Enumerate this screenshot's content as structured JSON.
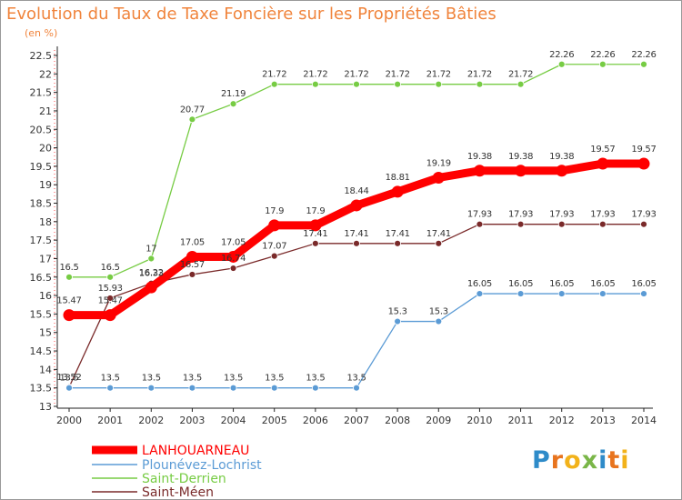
{
  "chart_data": {
    "type": "line",
    "title": "Evolution du Taux de Taxe Foncière sur les Propriétés Bâties",
    "ylabel": "(en %)",
    "xlabel": "",
    "x": [
      "2000",
      "2001",
      "2002",
      "2003",
      "2004",
      "2005",
      "2006",
      "2007",
      "2008",
      "2009",
      "2010",
      "2011",
      "2012",
      "2013",
      "2014"
    ],
    "yticks": [
      "13",
      "13.5",
      "14",
      "14.5",
      "15",
      "15.5",
      "16",
      "16.5",
      "17",
      "17.5",
      "18",
      "18.5",
      "19",
      "19.5",
      "20",
      "20.5",
      "21",
      "21.5",
      "22",
      "22.5"
    ],
    "ylim": [
      13,
      22.5
    ],
    "grid": false,
    "series": [
      {
        "name": "LANHOUARNEAU",
        "color": "#ff0000",
        "values": [
          15.47,
          15.47,
          16.22,
          17.05,
          17.05,
          17.9,
          17.9,
          18.44,
          18.81,
          19.19,
          19.38,
          19.38,
          19.38,
          19.57,
          19.57
        ],
        "labels": [
          "15.47",
          "15.47",
          "16.22",
          "17.05",
          "17.05",
          "17.9",
          "17.9",
          "18.44",
          "18.81",
          "19.19",
          "19.38",
          "19.38",
          "19.38",
          "19.57",
          "19.57"
        ]
      },
      {
        "name": "Plounévez-Lochrist",
        "color": "#5b9bd5",
        "values": [
          13.5,
          13.5,
          13.5,
          13.5,
          13.5,
          13.5,
          13.5,
          13.5,
          15.3,
          15.3,
          16.05,
          16.05,
          16.05,
          16.05,
          16.05
        ],
        "labels": [
          "13.5",
          "13.5",
          "13.5",
          "13.5",
          "13.5",
          "13.5",
          "13.5",
          "13.5",
          "15.3",
          "15.3",
          "16.05",
          "16.05",
          "16.05",
          "16.05",
          "16.05"
        ]
      },
      {
        "name": "Saint-Derrien",
        "color": "#77cc44",
        "values": [
          16.5,
          16.5,
          17,
          20.77,
          21.19,
          21.72,
          21.72,
          21.72,
          21.72,
          21.72,
          21.72,
          21.72,
          22.26,
          22.26,
          22.26
        ],
        "labels": [
          "16.5",
          "16.5",
          "17",
          "20.77",
          "21.19",
          "21.72",
          "21.72",
          "21.72",
          "21.72",
          "21.72",
          "21.72",
          "21.72",
          "22.26",
          "22.26",
          "22.26"
        ]
      },
      {
        "name": "Saint-Méen",
        "color": "#7a2a2a",
        "values": [
          13.52,
          15.93,
          16.33,
          16.57,
          16.74,
          17.07,
          17.41,
          17.41,
          17.41,
          17.41,
          17.93,
          17.93,
          17.93,
          17.93,
          17.93
        ],
        "labels": [
          "13.52",
          "15.93",
          "16.33",
          "16.57",
          "16.74",
          "17.07",
          "17.41",
          "17.41",
          "17.41",
          "17.41",
          "17.93",
          "17.93",
          "17.93",
          "17.93",
          "17.93"
        ]
      }
    ],
    "legend": "bottom-left"
  },
  "branding": {
    "letters": [
      "P",
      "r",
      "o",
      "x",
      "i",
      "t",
      "i"
    ],
    "colors": [
      "#2e8bc9",
      "#e8741e",
      "#f2b21a",
      "#7ab648",
      "#2e8bc9",
      "#e8741e",
      "#f2b21a"
    ]
  }
}
